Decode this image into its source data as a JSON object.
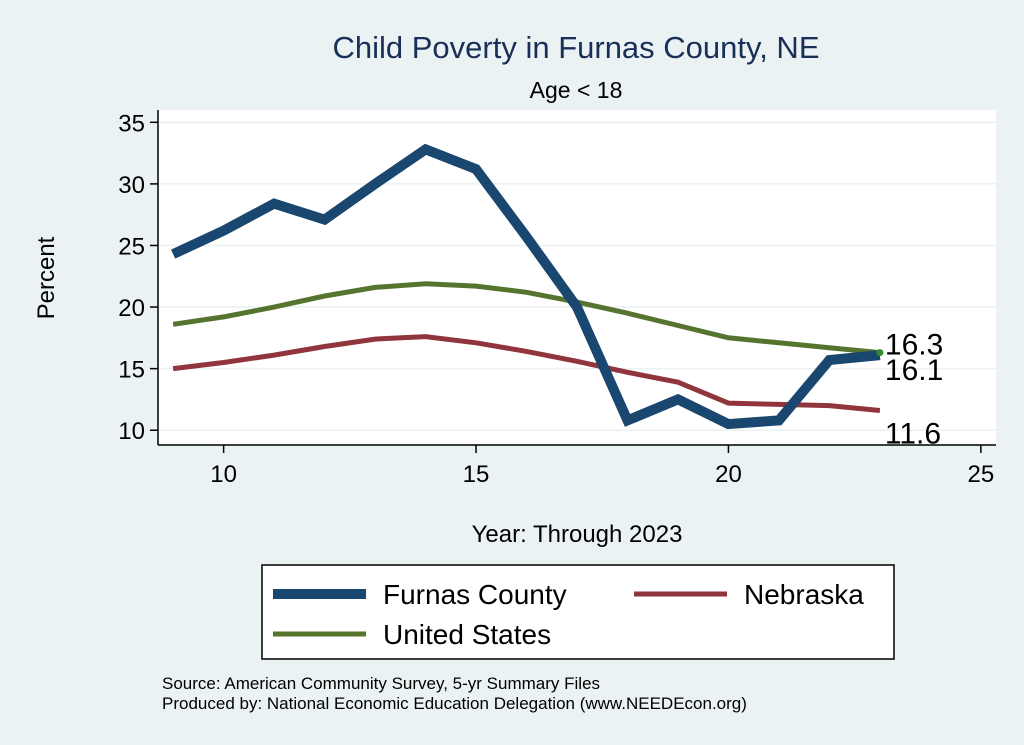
{
  "chart_data": {
    "type": "line",
    "title": "Child Poverty in Furnas County, NE",
    "subtitle": "Age < 18",
    "xlabel": "Year: Through 2023",
    "ylabel": "Percent",
    "xlim": [
      8.7,
      25.3
    ],
    "ylim": [
      8.8,
      36.0
    ],
    "xticks": [
      10,
      15,
      20,
      25
    ],
    "yticks": [
      10,
      15,
      20,
      25,
      30,
      35
    ],
    "grid": true,
    "legend_position": "bottom",
    "series": [
      {
        "name": "Furnas County",
        "color": "#1a476f",
        "x": [
          9,
          10,
          11,
          12,
          13,
          14,
          15,
          16,
          17,
          18,
          19,
          20,
          21,
          22,
          23
        ],
        "values": [
          24.3,
          26.2,
          28.4,
          27.1,
          30.0,
          32.8,
          31.2,
          25.7,
          20.0,
          10.8,
          12.5,
          10.5,
          10.8,
          15.7,
          16.1
        ]
      },
      {
        "name": "Nebraska",
        "color": "#90353b",
        "x": [
          9,
          10,
          11,
          12,
          13,
          14,
          15,
          16,
          17,
          18,
          19,
          20,
          21,
          22,
          23
        ],
        "values": [
          15.0,
          15.5,
          16.1,
          16.8,
          17.4,
          17.6,
          17.1,
          16.4,
          15.6,
          14.7,
          13.9,
          12.2,
          12.1,
          12.0,
          11.6
        ]
      },
      {
        "name": "United States",
        "color": "#55752f",
        "x": [
          9,
          10,
          11,
          12,
          13,
          14,
          15,
          16,
          17,
          18,
          19,
          20,
          21,
          22,
          23
        ],
        "values": [
          18.6,
          19.2,
          20.0,
          20.9,
          21.6,
          21.9,
          21.7,
          21.2,
          20.4,
          19.5,
          18.5,
          17.5,
          17.1,
          16.7,
          16.3
        ]
      }
    ],
    "end_labels": [
      {
        "series": "United States",
        "text": "16.3"
      },
      {
        "series": "Furnas County",
        "text": "16.1"
      },
      {
        "series": "Nebraska",
        "text": "11.6"
      }
    ],
    "endpoint_marker_color": "#2e8b2e"
  },
  "footnotes": {
    "source": "Source: American Community Survey, 5-yr Summary Files",
    "produced": "Produced by: National Economic Education Delegation (www.NEEDEcon.org)"
  }
}
